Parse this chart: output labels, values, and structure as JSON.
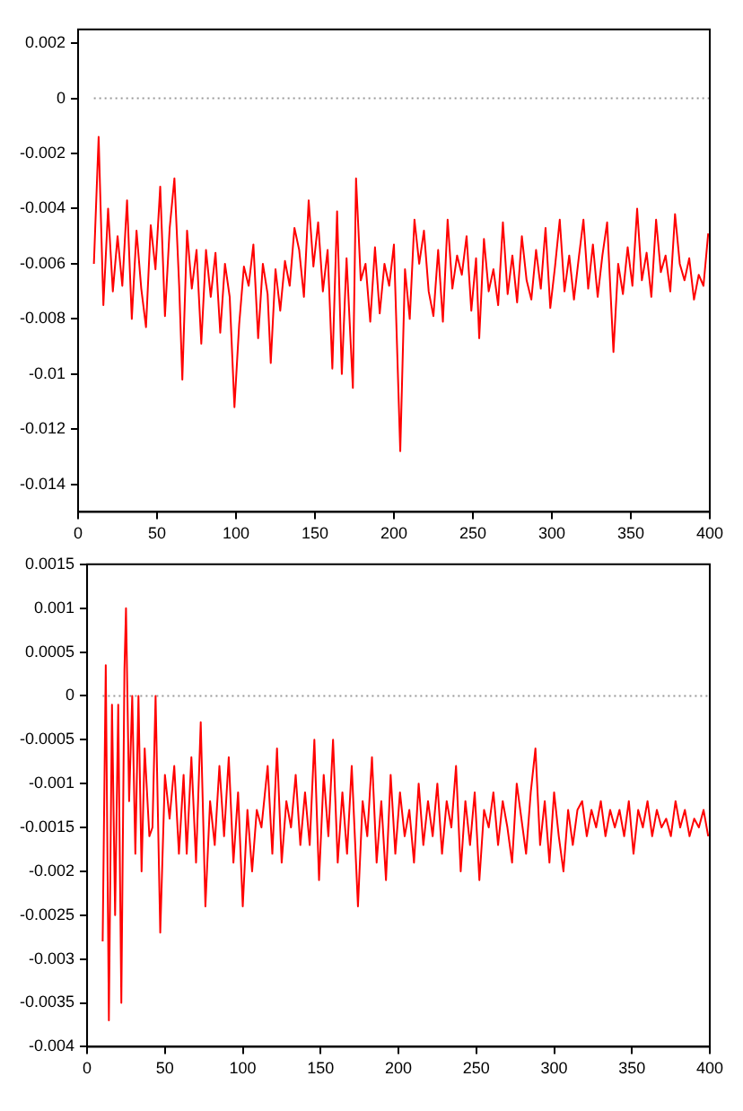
{
  "chart_data": [
    {
      "type": "line",
      "xlim": [
        0,
        400
      ],
      "ylim": [
        -0.015,
        0.0025
      ],
      "xticks": [
        0,
        50,
        100,
        150,
        200,
        250,
        300,
        350,
        400
      ],
      "yticks": [
        -0.014,
        -0.012,
        -0.01,
        -0.008,
        -0.006,
        -0.004,
        -0.002,
        0,
        0.002
      ],
      "grid": false,
      "legend": false,
      "marker": "none",
      "series": [
        {
          "color": "#ff0000",
          "line_style": "solid",
          "x": [
            10,
            13,
            16,
            19,
            22,
            25,
            28,
            31,
            34,
            37,
            40,
            43,
            46,
            49,
            52,
            55,
            58,
            61,
            64,
            66,
            69,
            72,
            75,
            78,
            81,
            84,
            87,
            90,
            93,
            96,
            99,
            102,
            105,
            108,
            111,
            114,
            117,
            120,
            122,
            125,
            128,
            131,
            134,
            137,
            140,
            143,
            146,
            149,
            152,
            155,
            158,
            161,
            164,
            167,
            170,
            174,
            176,
            179,
            182,
            185,
            188,
            191,
            194,
            197,
            200,
            204,
            207,
            210,
            213,
            216,
            219,
            222,
            225,
            228,
            231,
            234,
            237,
            240,
            243,
            246,
            249,
            252,
            254,
            257,
            260,
            263,
            266,
            269,
            272,
            275,
            278,
            281,
            284,
            287,
            290,
            293,
            296,
            299,
            302,
            305,
            308,
            311,
            314,
            317,
            320,
            323,
            326,
            329,
            332,
            335,
            339,
            342,
            345,
            348,
            351,
            354,
            357,
            360,
            363,
            366,
            369,
            372,
            375,
            378,
            381,
            384,
            387,
            390,
            393,
            396,
            399
          ],
          "values": [
            -0.006,
            -0.0014,
            -0.0075,
            -0.004,
            -0.007,
            -0.005,
            -0.0068,
            -0.0037,
            -0.008,
            -0.0048,
            -0.0069,
            -0.0083,
            -0.0046,
            -0.0062,
            -0.0032,
            -0.0079,
            -0.0047,
            -0.0029,
            -0.0068,
            -0.0102,
            -0.0048,
            -0.0069,
            -0.0055,
            -0.0089,
            -0.0055,
            -0.0072,
            -0.0056,
            -0.0085,
            -0.006,
            -0.0072,
            -0.0112,
            -0.0082,
            -0.0061,
            -0.0068,
            -0.0053,
            -0.0087,
            -0.006,
            -0.0071,
            -0.0096,
            -0.0062,
            -0.0077,
            -0.0059,
            -0.0068,
            -0.0047,
            -0.0055,
            -0.0072,
            -0.0037,
            -0.0061,
            -0.0045,
            -0.007,
            -0.0055,
            -0.0098,
            -0.0041,
            -0.01,
            -0.0058,
            -0.0105,
            -0.0029,
            -0.0066,
            -0.006,
            -0.0081,
            -0.0054,
            -0.0078,
            -0.006,
            -0.0068,
            -0.0053,
            -0.0128,
            -0.0062,
            -0.008,
            -0.0044,
            -0.006,
            -0.0048,
            -0.007,
            -0.0079,
            -0.0055,
            -0.0081,
            -0.0044,
            -0.0069,
            -0.0057,
            -0.0064,
            -0.005,
            -0.0077,
            -0.0058,
            -0.0087,
            -0.0051,
            -0.007,
            -0.0062,
            -0.0075,
            -0.0045,
            -0.0071,
            -0.0057,
            -0.0074,
            -0.005,
            -0.0066,
            -0.0073,
            -0.0055,
            -0.0069,
            -0.0047,
            -0.0076,
            -0.0061,
            -0.0044,
            -0.007,
            -0.0057,
            -0.0073,
            -0.0058,
            -0.0044,
            -0.0069,
            -0.0053,
            -0.0072,
            -0.0057,
            -0.0045,
            -0.0092,
            -0.006,
            -0.0071,
            -0.0054,
            -0.0068,
            -0.004,
            -0.0066,
            -0.0056,
            -0.0072,
            -0.0044,
            -0.0063,
            -0.0057,
            -0.007,
            -0.0042,
            -0.006,
            -0.0066,
            -0.0058,
            -0.0073,
            -0.0064,
            -0.0068,
            -0.0049
          ]
        },
        {
          "color": "#999999",
          "line_style": "dotted",
          "x": [
            10,
            400
          ],
          "values": [
            0,
            0
          ]
        }
      ]
    },
    {
      "type": "line",
      "xlim": [
        0,
        400
      ],
      "ylim": [
        -0.004,
        0.0015
      ],
      "xticks": [
        0,
        50,
        100,
        150,
        200,
        250,
        300,
        350,
        400
      ],
      "yticks": [
        -0.004,
        -0.0035,
        -0.003,
        -0.0025,
        -0.002,
        -0.0015,
        -0.001,
        -0.0005,
        0,
        0.0005,
        0.001,
        0.0015
      ],
      "grid": false,
      "legend": false,
      "marker": "none",
      "series": [
        {
          "color": "#ff0000",
          "line_style": "solid",
          "x": [
            10,
            12,
            14,
            16,
            18,
            20,
            22,
            24,
            25,
            27,
            29,
            31,
            33,
            35,
            37,
            40,
            42,
            44,
            47,
            50,
            53,
            56,
            59,
            62,
            64,
            67,
            70,
            73,
            76,
            79,
            82,
            85,
            88,
            91,
            94,
            97,
            100,
            103,
            106,
            109,
            112,
            116,
            119,
            122,
            125,
            128,
            131,
            134,
            137,
            140,
            143,
            146,
            149,
            152,
            155,
            158,
            161,
            164,
            167,
            170,
            174,
            177,
            180,
            183,
            186,
            189,
            192,
            195,
            198,
            201,
            204,
            207,
            210,
            213,
            216,
            219,
            222,
            225,
            228,
            231,
            234,
            237,
            240,
            243,
            246,
            249,
            252,
            255,
            258,
            261,
            264,
            267,
            270,
            273,
            276,
            279,
            282,
            285,
            288,
            291,
            294,
            297,
            300,
            303,
            306,
            309,
            312,
            315,
            318,
            321,
            324,
            327,
            330,
            333,
            336,
            339,
            342,
            345,
            348,
            351,
            354,
            357,
            360,
            363,
            366,
            369,
            372,
            375,
            378,
            381,
            384,
            387,
            390,
            393,
            396,
            399
          ],
          "values": [
            -0.0028,
            0.00035,
            -0.0037,
            -0.0001,
            -0.0025,
            -0.0001,
            -0.0035,
            0.0003,
            0.001,
            -0.0012,
            0,
            -0.0018,
            0,
            -0.002,
            -0.0006,
            -0.0016,
            -0.0015,
            0,
            -0.0027,
            -0.0009,
            -0.0014,
            -0.0008,
            -0.0018,
            -0.0009,
            -0.0018,
            -0.0007,
            -0.0019,
            -0.0003,
            -0.0024,
            -0.0012,
            -0.0017,
            -0.0008,
            -0.0016,
            -0.0007,
            -0.0019,
            -0.0011,
            -0.0024,
            -0.0013,
            -0.002,
            -0.0013,
            -0.0015,
            -0.0008,
            -0.0018,
            -0.0006,
            -0.0019,
            -0.0012,
            -0.0015,
            -0.0009,
            -0.0017,
            -0.0011,
            -0.0017,
            -0.0005,
            -0.0021,
            -0.0009,
            -0.0016,
            -0.0005,
            -0.0019,
            -0.0011,
            -0.0018,
            -0.0008,
            -0.0024,
            -0.0012,
            -0.0016,
            -0.0007,
            -0.0019,
            -0.0012,
            -0.0021,
            -0.0009,
            -0.0018,
            -0.0011,
            -0.0016,
            -0.0013,
            -0.0019,
            -0.001,
            -0.0017,
            -0.0012,
            -0.0016,
            -0.001,
            -0.0018,
            -0.0012,
            -0.0015,
            -0.0008,
            -0.002,
            -0.0012,
            -0.0017,
            -0.0011,
            -0.0021,
            -0.0013,
            -0.0015,
            -0.0011,
            -0.0017,
            -0.0012,
            -0.0015,
            -0.0019,
            -0.001,
            -0.0014,
            -0.0018,
            -0.0011,
            -0.0006,
            -0.0017,
            -0.0012,
            -0.0019,
            -0.0011,
            -0.0016,
            -0.002,
            -0.0013,
            -0.0017,
            -0.0013,
            -0.0012,
            -0.0016,
            -0.0013,
            -0.0015,
            -0.0012,
            -0.0016,
            -0.0013,
            -0.0015,
            -0.0013,
            -0.0016,
            -0.0012,
            -0.0018,
            -0.0013,
            -0.0015,
            -0.0012,
            -0.0016,
            -0.0013,
            -0.0015,
            -0.0014,
            -0.0016,
            -0.0012,
            -0.0015,
            -0.0013,
            -0.0016,
            -0.0014,
            -0.0015,
            -0.0013,
            -0.0016
          ]
        },
        {
          "color": "#999999",
          "line_style": "dotted",
          "x": [
            10,
            400
          ],
          "values": [
            0,
            0
          ]
        }
      ]
    }
  ]
}
